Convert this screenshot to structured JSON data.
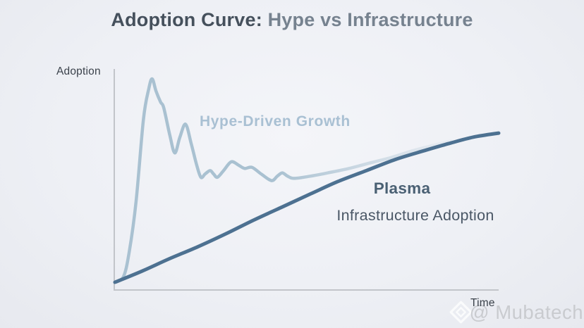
{
  "title": {
    "prefix": "Adoption Curve: ",
    "highlight": "Hype vs Infrastructure"
  },
  "axes": {
    "y_label": "Adoption",
    "x_label": "Time"
  },
  "curve_labels": {
    "hype": "Hype-Driven Growth",
    "plasma_title": "Plasma",
    "plasma_subtitle": "Infrastructure Adoption"
  },
  "watermark": {
    "icon": "gem-diamond-icon",
    "text": "@ Mubatech"
  },
  "colors": {
    "background": "#eef0f5",
    "title_primary": "#45505c",
    "title_accent": "#76828f",
    "axis_line": "#c2c5ca",
    "axis_text": "#3b424b",
    "hype_curve": "#a9c1d1",
    "infra_curve": "#4d7191",
    "hype_label": "#a9c0d3",
    "plasma_label": "#4a6073",
    "infra_label": "#4a5766",
    "watermark_text": "#c6c8cc"
  },
  "chart_data": {
    "type": "line",
    "title": "Adoption Curve: Hype vs Infrastructure",
    "xlabel": "Time",
    "ylabel": "Adoption",
    "x_range": [
      0,
      100
    ],
    "y_range": [
      0,
      100
    ],
    "grid": false,
    "legend_position": "inline-annotations",
    "notes": "Conceptual unlabeled axes; point values normalized 0-100 from pixel positions. Hype curve fades out and merges into the infrastructure curve.",
    "series": [
      {
        "name": "Hype-Driven Growth",
        "color": "#a9c1d1",
        "stroke_width": 4.5,
        "fades_out": true,
        "points": [
          [
            0,
            3.5
          ],
          [
            2.2,
            6
          ],
          [
            3.7,
            17
          ],
          [
            5.5,
            40
          ],
          [
            7.4,
            77
          ],
          [
            8.8,
            91
          ],
          [
            9.7,
            95.5
          ],
          [
            10.7,
            90
          ],
          [
            11.9,
            85
          ],
          [
            12.7,
            82.5
          ],
          [
            14.3,
            70
          ],
          [
            15.6,
            62
          ],
          [
            16.9,
            69
          ],
          [
            18.4,
            75
          ],
          [
            19.9,
            66
          ],
          [
            21.3,
            56.5
          ],
          [
            22.4,
            51
          ],
          [
            23.5,
            52.5
          ],
          [
            24.8,
            54
          ],
          [
            25.7,
            52.5
          ],
          [
            26.7,
            51
          ],
          [
            28.3,
            54
          ],
          [
            30.3,
            58
          ],
          [
            32.2,
            56.5
          ],
          [
            33.8,
            55
          ],
          [
            35.7,
            55.5
          ],
          [
            38.1,
            52.5
          ],
          [
            40.8,
            49.5
          ],
          [
            42.3,
            51.5
          ],
          [
            43.6,
            53
          ],
          [
            45,
            51.5
          ],
          [
            46.7,
            50.5
          ],
          [
            50.9,
            51.5
          ],
          [
            55.5,
            53
          ],
          [
            61,
            55
          ],
          [
            66.5,
            57.5
          ],
          [
            72.1,
            60
          ],
          [
            77.6,
            63
          ],
          [
            83.1,
            65.5
          ],
          [
            87.7,
            67.5
          ]
        ]
      },
      {
        "name": "Plasma Infrastructure Adoption",
        "color": "#4d7191",
        "stroke_width": 5,
        "fades_out": false,
        "points": [
          [
            0,
            3.5
          ],
          [
            7,
            8.5
          ],
          [
            14,
            14
          ],
          [
            21.5,
            19.5
          ],
          [
            29,
            25.5
          ],
          [
            36,
            31.5
          ],
          [
            43.5,
            37.5
          ],
          [
            51,
            43.5
          ],
          [
            58,
            49
          ],
          [
            65.5,
            54
          ],
          [
            73,
            59
          ],
          [
            80.5,
            63
          ],
          [
            87.5,
            66.5
          ],
          [
            93.5,
            69.2
          ],
          [
            100,
            71
          ]
        ]
      }
    ]
  }
}
